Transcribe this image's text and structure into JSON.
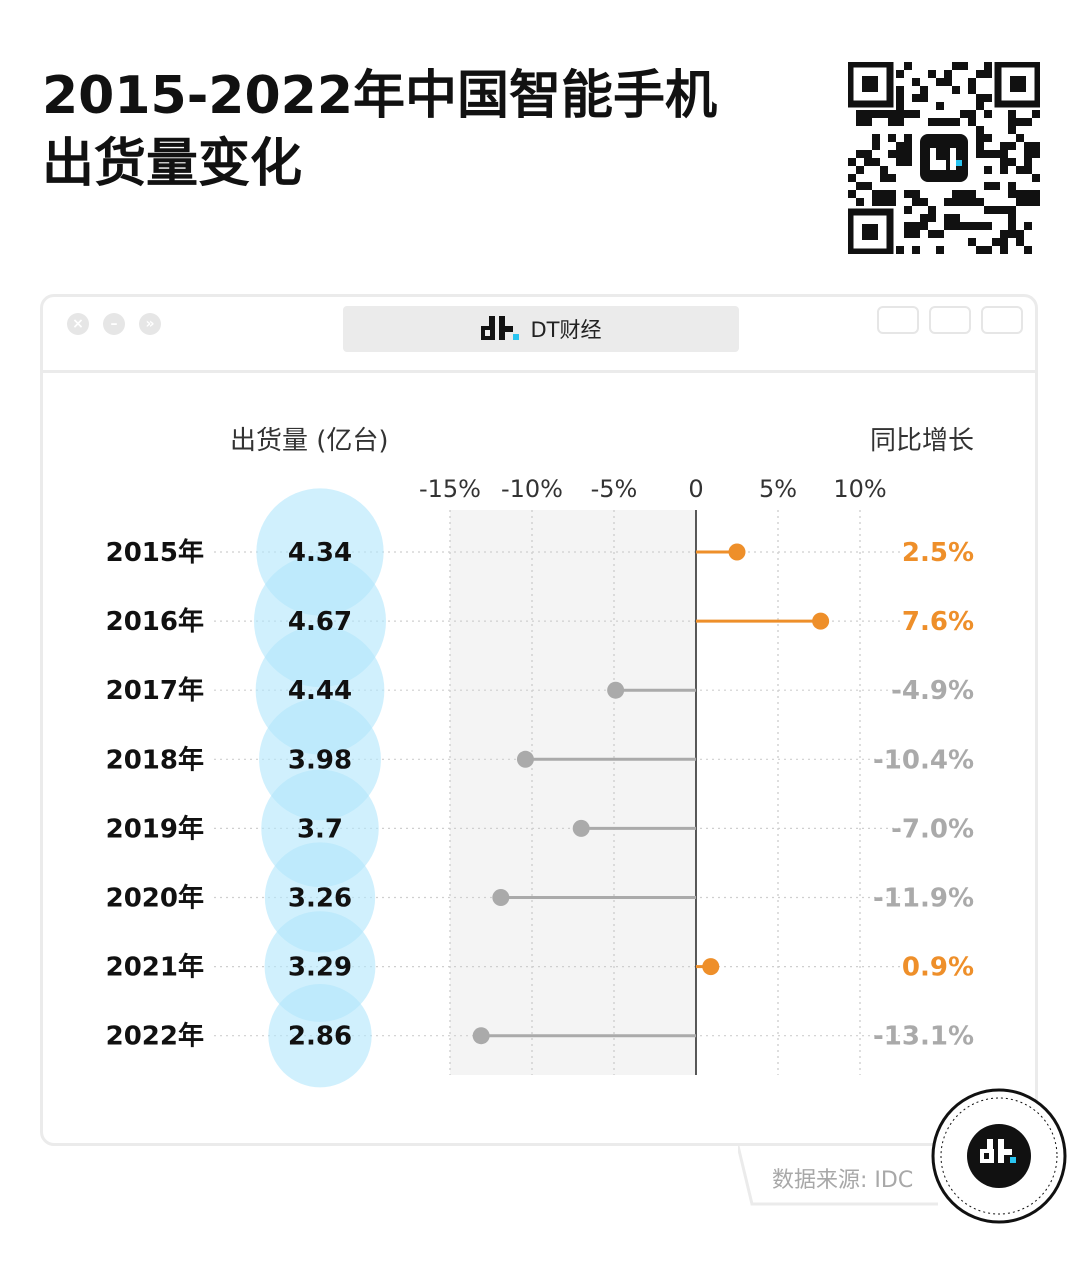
{
  "header": {
    "title_line1": "2015-2022年中国智能手机",
    "title_line2": "出货量变化"
  },
  "window": {
    "title": "DT财经",
    "controls": [
      "close-icon",
      "minimize-icon",
      "expand-icon"
    ],
    "toolbar_icons": [
      "record-icon",
      "share-icon",
      "window-icon"
    ]
  },
  "footer": {
    "source": "数据来源: IDC"
  },
  "colors": {
    "positive": "#ee8f2a",
    "negative": "#aaaaaa",
    "bubble": "#b3e6fb",
    "panel": "#f4f4f4"
  },
  "chart_data": {
    "type": "lollipop",
    "left_header": "出货量 (亿台)",
    "right_header": "同比增长",
    "categories": [
      "2015年",
      "2016年",
      "2017年",
      "2018年",
      "2019年",
      "2020年",
      "2021年",
      "2022年"
    ],
    "shipments": [
      4.34,
      4.67,
      4.44,
      3.98,
      3.7,
      3.26,
      3.29,
      2.86
    ],
    "shipment_labels": [
      "4.34",
      "4.67",
      "4.44",
      "3.98",
      "3.7",
      "3.26",
      "3.29",
      "2.86"
    ],
    "growth_pct": [
      2.5,
      7.6,
      -4.9,
      -10.4,
      -7.0,
      -11.9,
      0.9,
      -13.1
    ],
    "growth_labels": [
      "2.5%",
      "7.6%",
      "-4.9%",
      "-10.4%",
      "-7.0%",
      "-11.9%",
      "0.9%",
      "-13.1%"
    ],
    "x_ticks": [
      -15,
      -10,
      -5,
      0,
      5,
      10
    ],
    "x_tick_labels": [
      "-15%",
      "-10%",
      "-5%",
      "0",
      "5%",
      "10%"
    ],
    "xlim": [
      -15,
      10
    ]
  }
}
